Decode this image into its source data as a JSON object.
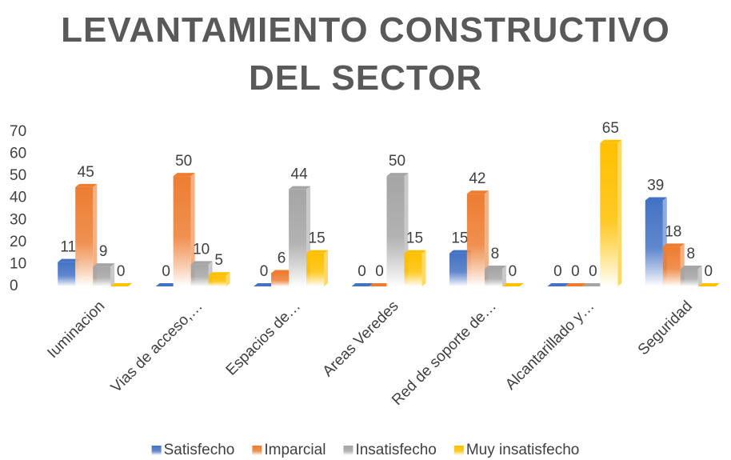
{
  "chart_data": {
    "type": "bar3d",
    "title": "LEVANTAMIENTO CONSTRUCTIVO DEL SECTOR",
    "categories": [
      "Iuminacion",
      "Vias de acceso,…",
      "Espacios de…",
      "Areas Veredes",
      "Red de soporte de…",
      "Alcantarillado y…",
      "Seguridad"
    ],
    "series": [
      {
        "name": "Satisfecho",
        "color": "#4472c4",
        "values": [
          11,
          0,
          0,
          0,
          15,
          0,
          39
        ]
      },
      {
        "name": "Imparcial",
        "color": "#ed7d31",
        "values": [
          45,
          50,
          6,
          0,
          42,
          0,
          18
        ]
      },
      {
        "name": "Insatisfecho",
        "color": "#a5a5a5",
        "values": [
          9,
          10,
          44,
          50,
          8,
          0,
          8
        ]
      },
      {
        "name": "Muy insatisfecho",
        "color": "#ffc000",
        "values": [
          0,
          5,
          15,
          15,
          0,
          65,
          0
        ]
      }
    ],
    "ylim": [
      0,
      70
    ],
    "yticks": [
      0,
      10,
      20,
      30,
      40,
      50,
      60,
      70
    ],
    "grid": false,
    "legend": "bottom"
  }
}
